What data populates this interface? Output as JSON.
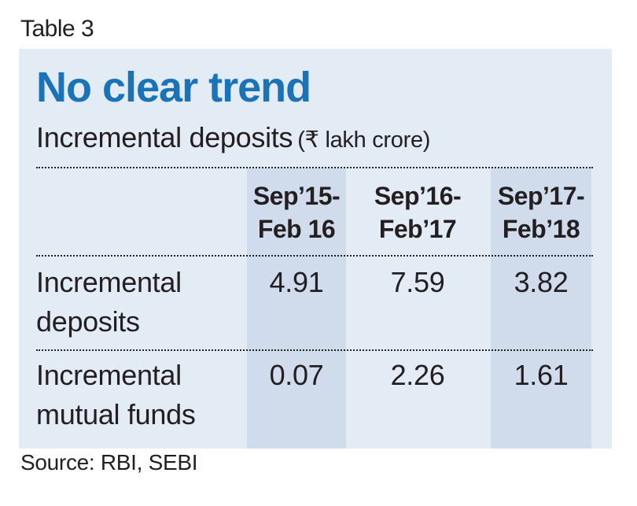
{
  "table_tag": "Table 3",
  "chart_data": {
    "type": "table",
    "title": "No clear trend",
    "subtitle": "Incremental deposits",
    "unit": "(₹ lakh crore)",
    "columns": [
      {
        "line1": "Sep’15-",
        "line2": "Feb 16"
      },
      {
        "line1": "Sep’16-",
        "line2": "Feb’17"
      },
      {
        "line1": "Sep’17-",
        "line2": "Feb’18"
      }
    ],
    "rows": [
      {
        "label_line1": "Incremental",
        "label_line2": "deposits",
        "values": [
          "4.91",
          "7.59",
          "3.82"
        ]
      },
      {
        "label_line1": "Incremental",
        "label_line2": "mutual funds",
        "values": [
          "0.07",
          "2.26",
          "1.61"
        ]
      }
    ]
  },
  "source": "Source: RBI, SEBI",
  "colors": {
    "title": "#1a73b6",
    "panel_background": "#e3ebf5",
    "column_highlight": "#d0dcec"
  }
}
